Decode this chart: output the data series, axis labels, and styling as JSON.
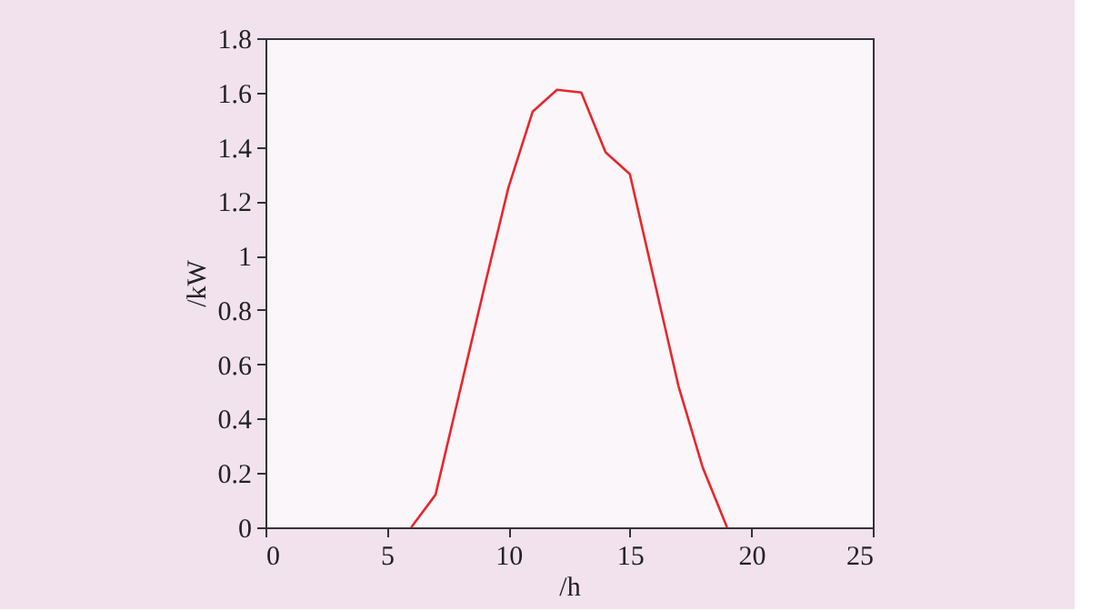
{
  "chart_data": {
    "type": "line",
    "xlabel": "/h",
    "ylabel": "/kW",
    "x": [
      6,
      7,
      8,
      9,
      10,
      11,
      12,
      13,
      14,
      15,
      16,
      17,
      18,
      19
    ],
    "series": [
      {
        "color": "#e8262b",
        "values": [
          0,
          0.12,
          0.5,
          0.88,
          1.25,
          1.53,
          1.61,
          1.6,
          1.38,
          1.3,
          0.91,
          0.52,
          0.22,
          0
        ]
      }
    ],
    "xlim": [
      0,
      25
    ],
    "xticks": [
      0,
      5,
      10,
      15,
      20,
      25
    ],
    "ylim": [
      0,
      1.8
    ],
    "yticks": [
      0,
      0.2,
      0.4,
      0.6,
      0.8,
      1,
      1.2,
      1.4,
      1.6,
      1.8
    ],
    "grid": false,
    "marker": "none",
    "line_style": "solid"
  }
}
